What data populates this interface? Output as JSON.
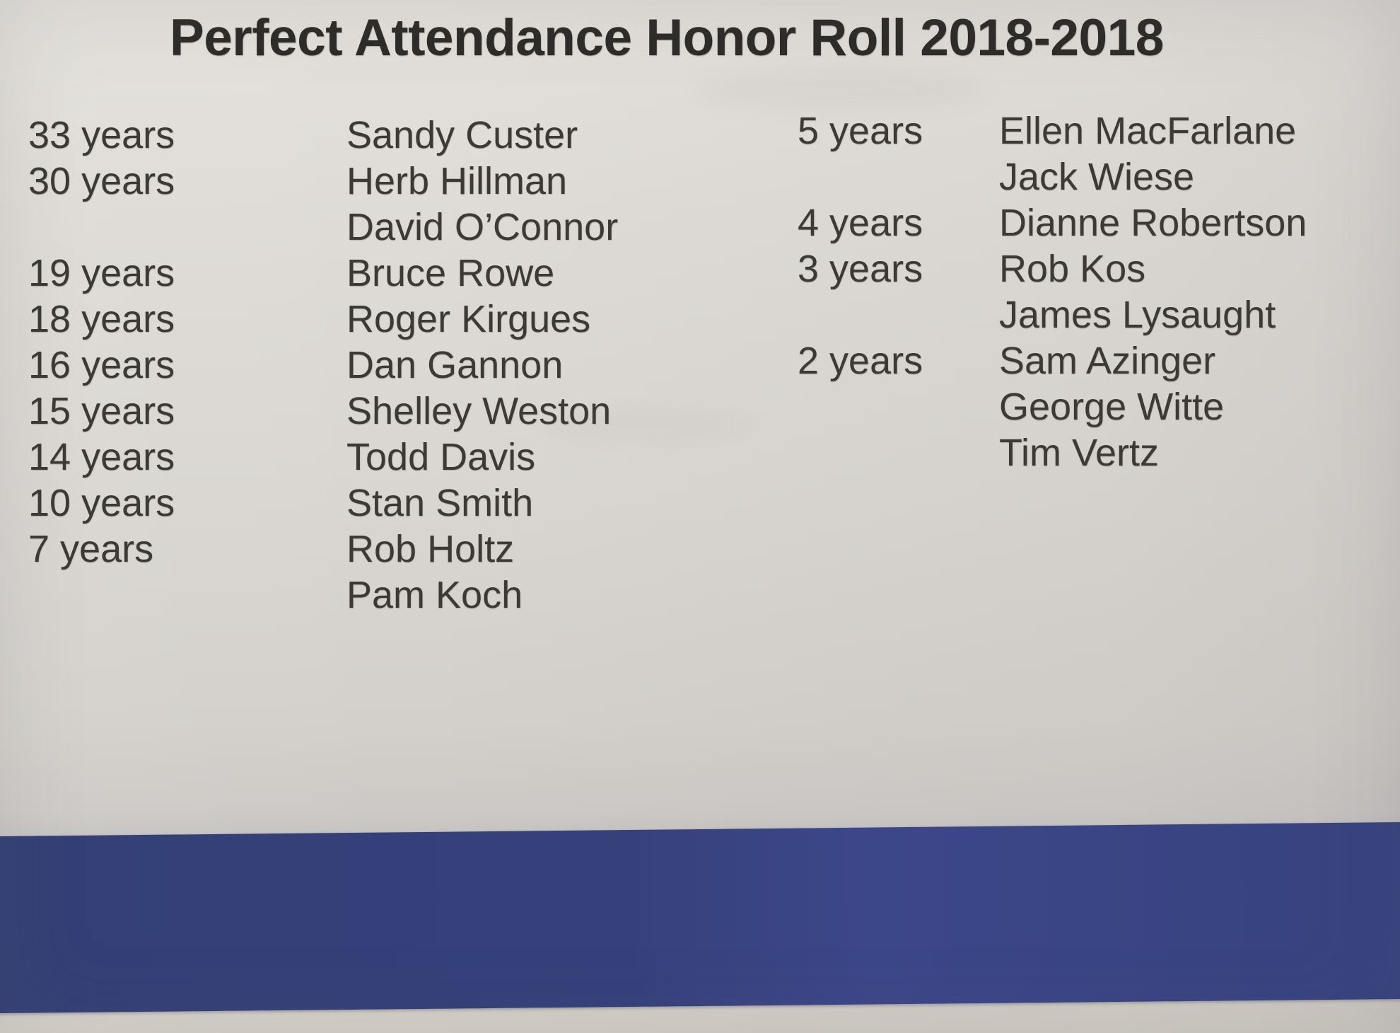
{
  "title": "Perfect Attendance Honor Roll 2018-2018",
  "columns": {
    "left": [
      {
        "years": "33 years",
        "name": "Sandy Custer"
      },
      {
        "years": "30 years",
        "name": "Herb Hillman"
      },
      {
        "years": "",
        "name": "David O’Connor"
      },
      {
        "years": "19 years",
        "name": "Bruce Rowe"
      },
      {
        "years": "18 years",
        "name": "Roger Kirgues"
      },
      {
        "years": "16 years",
        "name": "Dan Gannon"
      },
      {
        "years": "15 years",
        "name": "Shelley Weston"
      },
      {
        "years": "14 years",
        "name": "Todd Davis"
      },
      {
        "years": "10 years",
        "name": "Stan Smith"
      },
      {
        "years": "7 years",
        "name": "Rob Holtz"
      },
      {
        "years": "",
        "name": "Pam Koch"
      }
    ],
    "right": [
      {
        "years": "5 years",
        "name": "Ellen MacFarlane"
      },
      {
        "years": "",
        "name": "Jack Wiese"
      },
      {
        "years": "4 years",
        "name": "Dianne Robertson"
      },
      {
        "years": "3 years",
        "name": "Rob Kos"
      },
      {
        "years": "",
        "name": "James Lysaught"
      },
      {
        "years": "2 years",
        "name": "Sam Azinger"
      },
      {
        "years": "",
        "name": "George Witte"
      },
      {
        "years": "",
        "name": "Tim Vertz"
      }
    ]
  },
  "colors": {
    "paper": "#d9d6d1",
    "body_text": "#3c3a37",
    "title_text": "#2d2c29",
    "banner_blue": "#343f76",
    "bottom_strip": "#d6d2c9"
  }
}
